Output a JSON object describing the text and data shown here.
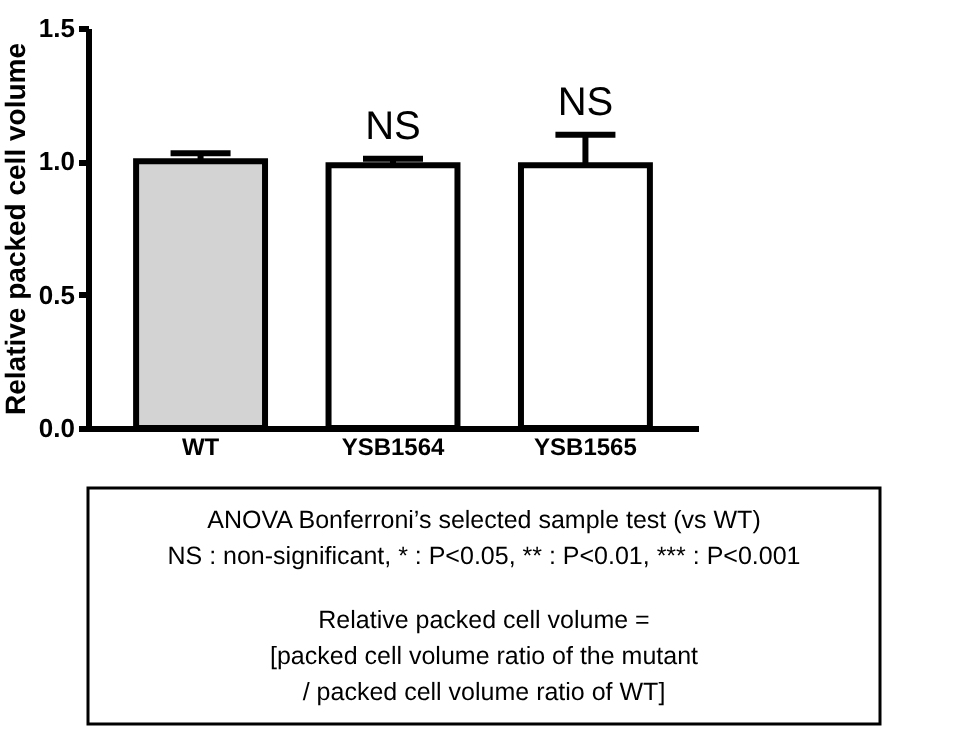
{
  "chart_data": {
    "type": "bar",
    "ylabel": "Relative packed cell volume",
    "categories": [
      "WT",
      "YSB1564",
      "YSB1565"
    ],
    "values": [
      1.0,
      0.985,
      0.985
    ],
    "colors": [
      "#d3d3d3",
      "#ffffff",
      "#ffffff"
    ],
    "errors": [
      [
        1.0,
        1.03
      ],
      [
        0.985,
        1.01
      ],
      [
        0.985,
        1.1
      ]
    ],
    "ylim": [
      0,
      1.5
    ],
    "yticks": [
      {
        "value": 0,
        "label": "0.0"
      },
      0.5,
      {
        "value": 1,
        "label": "1.0"
      },
      1.5
    ],
    "grid": false,
    "annotations": [
      {
        "text": "NS",
        "x": "YSB1564",
        "y": 1.01
      },
      {
        "text": "NS",
        "x": "YSB1565",
        "y": 1.1
      },
      "ANOVA Bonferroni’s selected sample test (vs WT)\nNS : non-significant, * : P<0.05, ** : P<0.01, *** : P<0.001",
      "Relative packed cell volume =\n[packed cell volume ratio of the mutant\n/ packed cell volume ratio of WT]"
    ]
  }
}
